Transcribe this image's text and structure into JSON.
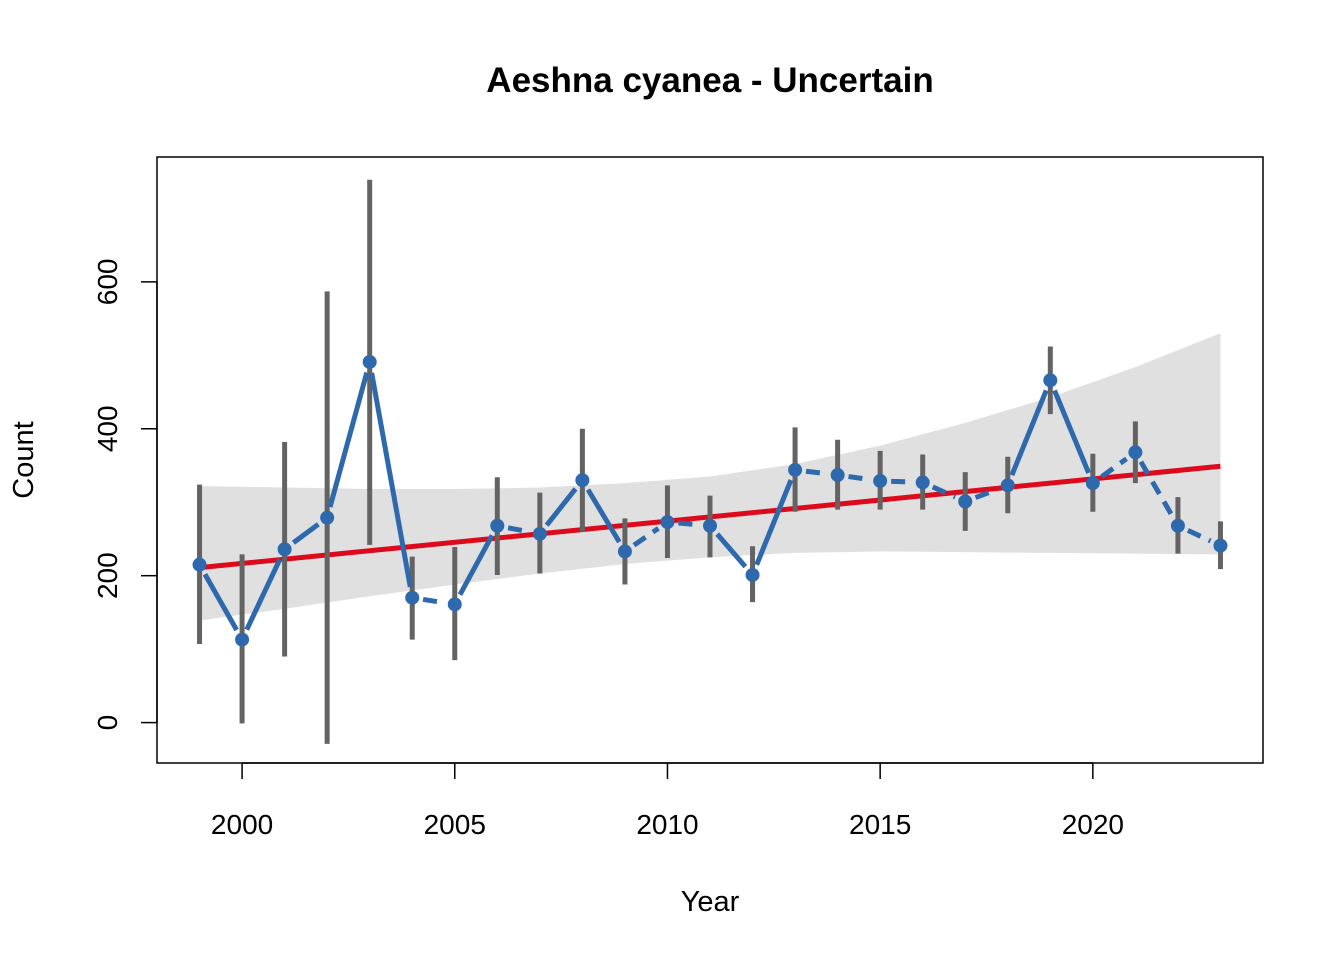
{
  "chart_data": {
    "type": "line",
    "title": "Aeshna cyanea - Uncertain",
    "xlabel": "Year",
    "ylabel": "Count",
    "xlim": [
      1998.0,
      2024.0
    ],
    "ylim": [
      -55,
      770
    ],
    "x_ticks": [
      2000,
      2005,
      2010,
      2015,
      2020
    ],
    "y_ticks": [
      0,
      200,
      400,
      600
    ],
    "x_tick_labels": [
      "2000",
      "2005",
      "2010",
      "2015",
      "2020"
    ],
    "y_tick_labels": [
      "0",
      "200",
      "400",
      "600"
    ],
    "grid": false,
    "series": [
      {
        "x": [
          1999,
          2000,
          2001,
          2002,
          2003,
          2004,
          2005,
          2006,
          2007,
          2008,
          2009,
          2010,
          2011,
          2012,
          2013,
          2014,
          2015,
          2016,
          2017,
          2018,
          2019,
          2020,
          2021,
          2022,
          2023
        ],
        "y": [
          215,
          113,
          236,
          279,
          491,
          170,
          161,
          268,
          257,
          330,
          233,
          273,
          268,
          201,
          344,
          337,
          329,
          327,
          301,
          323,
          466,
          326,
          368,
          268,
          241
        ],
        "ci_low": [
          107,
          -1,
          90,
          -29,
          242,
          113,
          85,
          201,
          203,
          260,
          188,
          224,
          225,
          164,
          287,
          290,
          290,
          290,
          261,
          285,
          420,
          287,
          326,
          230,
          209
        ],
        "ci_high": [
          324,
          229,
          382,
          587,
          739,
          226,
          239,
          334,
          313,
          400,
          278,
          323,
          309,
          240,
          402,
          385,
          370,
          365,
          341,
          362,
          512,
          366,
          410,
          307,
          274
        ],
        "line_styles": [
          "solid",
          "solid",
          "solid",
          "solid",
          "solid",
          "dashed",
          "solid",
          "dashed",
          "solid",
          "solid",
          "dashed",
          "dashed",
          "solid",
          "solid",
          "dashed",
          "dashed",
          "dashed",
          "dashed",
          "dashed",
          "solid",
          "solid",
          "dashed",
          "dashed",
          "dashed"
        ],
        "color": "#2E69AE",
        "error_bar_color": "#636363"
      }
    ],
    "trend": {
      "x": [
        1999,
        2023
      ],
      "y": [
        211,
        349
      ],
      "color": "#DC0A1A",
      "band": {
        "x": [
          1999,
          2001,
          2003,
          2005,
          2007,
          2009,
          2011,
          2013,
          2015,
          2017,
          2019,
          2021,
          2023
        ],
        "low": [
          139,
          155,
          172,
          188,
          203,
          216,
          225,
          231,
          233,
          232,
          231,
          230,
          229
        ],
        "high": [
          322,
          320,
          318,
          318,
          320,
          326,
          335,
          352,
          377,
          408,
          443,
          484,
          530
        ],
        "color": "#E0E0E0"
      }
    }
  }
}
